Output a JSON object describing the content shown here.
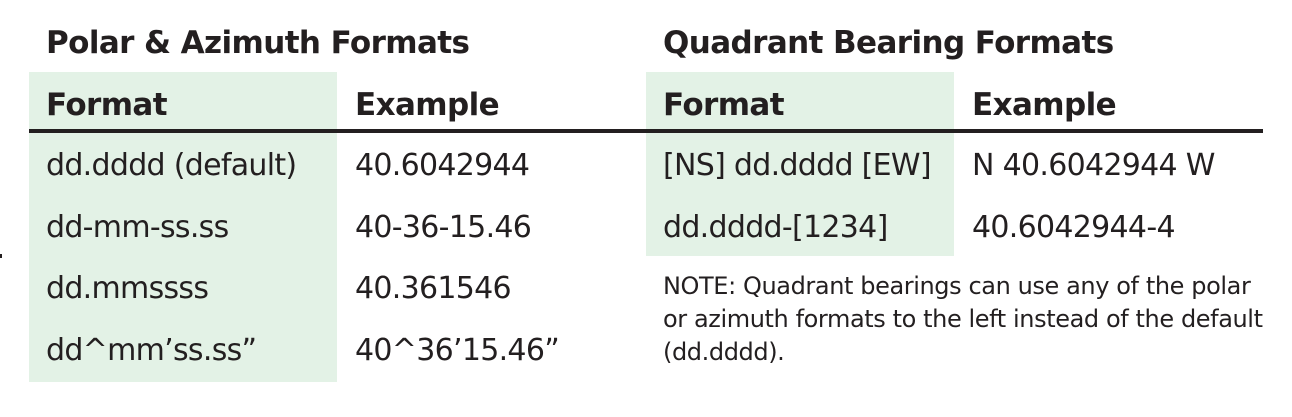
{
  "polar_table": {
    "title": "Polar & Azimuth Formats",
    "headers": [
      "Format",
      "Example"
    ],
    "rows": [
      [
        "dd.dddd (default)",
        "40.6042944"
      ],
      [
        "dd-mm-ss.ss",
        "40-36-15.46"
      ],
      [
        "dd.mmssss",
        "40.361546"
      ],
      [
        "dd^mm’ss.ss”",
        "40^36’15.46”"
      ]
    ]
  },
  "quadrant_table": {
    "title": "Quadrant Bearing Formats",
    "headers": [
      "Format",
      "Example"
    ],
    "rows": [
      [
        "[NS] dd.dddd [EW]",
        "N 40.6042944 W"
      ],
      [
        "dd.dddd-[1234]",
        "40.6042944-4"
      ]
    ],
    "note": "NOTE: Quadrant bearings can use any of the polar or azimuth formats to the left instead of the  default (dd.dddd)."
  },
  "colors": {
    "format_column_shade": "#e3f2e6",
    "text": "#231f20",
    "rule": "#231f20"
  }
}
